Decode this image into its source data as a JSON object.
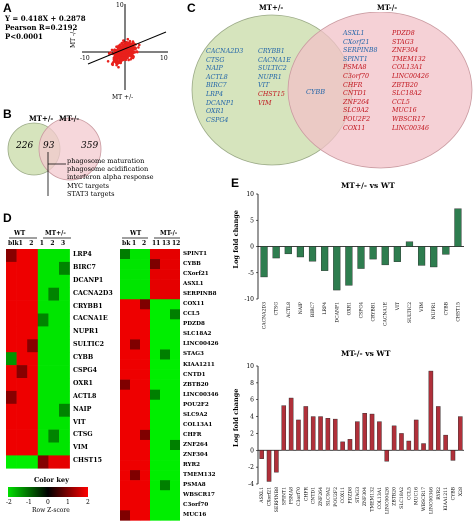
{
  "panels": {
    "A": {
      "letter": "A",
      "equation": "Y = 0.418X + 0.2878",
      "pearson": "Pearson R=0.2192",
      "pvalue": "P<0.0001",
      "y_axis_label": "MT -/-",
      "x_axis_label": "MT +/-",
      "tick_neg": "-10",
      "tick_pos": "10",
      "tick_y_pos": "10"
    },
    "B": {
      "letter": "B",
      "group1": "MT+/-",
      "group2": "MT-/-",
      "only1": "226",
      "both": "93",
      "only2": "359",
      "terms": [
        "phagosome maturation",
        "phagosome acidification",
        "interferon alpha response",
        "MYC targets",
        "STAT3 targets"
      ]
    },
    "C": {
      "letter": "C",
      "group1": "MT+/-",
      "group2": "MT-/-",
      "left_col1": [
        "CACNA2D3",
        "CTSG",
        "NAIP",
        "ACTL8",
        "BIRC7",
        "LRP4",
        "DCANP1",
        "OXR1",
        "CSPG4"
      ],
      "left_col2": [
        "CRYBB1",
        "CACNA1E",
        "SULTIC2",
        "NUPR1",
        "VIT",
        "CHST15",
        "VIM"
      ],
      "left_col2_colors": [
        "blue",
        "blue",
        "blue",
        "blue",
        "blue",
        "red",
        "red"
      ],
      "overlap": "CYBB",
      "right_col1": [
        "ASXL1",
        "CXorf21",
        "SERPINB8",
        "SPINT1",
        "PSMA8",
        "C3orf70",
        "CHFR",
        "CNTD1",
        "ZNF264",
        "SLC9A2",
        "POU2F2",
        "COX11"
      ],
      "right_col1_colors": [
        "blue",
        "blue",
        "blue",
        "blue",
        "red",
        "red",
        "red",
        "red",
        "red",
        "red",
        "red",
        "red"
      ],
      "right_col2": [
        "PDZD8",
        "STAG3",
        "ZNF304",
        "TMEM132",
        "COL13A1",
        "LINC00426",
        "ZBTB20",
        "SLC18A2",
        "CCL5",
        "MUC16",
        "WBSCR17",
        "LINC00346"
      ]
    },
    "D": {
      "letter": "D",
      "left_header_wt": "WT",
      "left_header_mt": "MT+/-",
      "left_cols": [
        "blk",
        "1",
        "2",
        "1",
        "2",
        "3"
      ],
      "left_genes": [
        "LRP4",
        "BIRC7",
        "DCANP1",
        "CACNA2D3",
        "CRYBB1",
        "CACNA1E",
        "NUPR1",
        "SULTIC2",
        "CYBB",
        "CSPG4",
        "OXR1",
        "ACTL8",
        "NAIP",
        "VIT",
        "CTSG",
        "VIM",
        "CHST15"
      ],
      "right_header_wt": "WT",
      "right_header_mt": "MT-/-",
      "right_cols": [
        "bk",
        "1",
        "2",
        "11",
        "13",
        "12"
      ],
      "right_genes": [
        "SPINT1",
        "CYBB",
        "CXorf21",
        "ASXL1",
        "SERPINB8",
        "COX11",
        "CCL5",
        "PDZD8",
        "SLC18A2",
        "LINC00426",
        "STAG3",
        "KIAA1211",
        "CNTD1",
        "ZBTB20",
        "LINC00346",
        "POU2F2",
        "SLC9A2",
        "COL13A1",
        "CHFR",
        "ZNF264",
        "ZNF304",
        "RYR2",
        "TMEM132",
        "PSMA8",
        "WBSCR17",
        "C3orf70",
        "MUC16"
      ],
      "color_key_title": "Color key",
      "color_key_ticks": [
        "-2",
        "-1",
        "0",
        "1",
        "2"
      ],
      "color_key_label": "Row Z-score"
    },
    "E": {
      "letter": "E"
    }
  },
  "chart_data": [
    {
      "type": "bar",
      "title": "MT+/- vs WT",
      "ylabel": "Log fold change",
      "ylim": [
        -10,
        10
      ],
      "yticks": [
        -10,
        -5,
        0,
        5,
        10
      ],
      "color": "#2e7d4f",
      "categories": [
        "CACNA2D3",
        "CTSG",
        "ACTL8",
        "NAIP",
        "BIRC7",
        "LRP4",
        "DCANP1",
        "OXR1",
        "CSPG4",
        "CRYBB1",
        "CACNA1E",
        "VIT",
        "SULTIC2",
        "VIM",
        "NUPR1",
        "CYBB",
        "CHST15"
      ],
      "values": [
        -5.8,
        -2.2,
        -1.4,
        -2.0,
        -2.8,
        -4.6,
        -8.3,
        -7.4,
        -4.2,
        -2.4,
        -3.5,
        -2.9,
        0.9,
        -3.6,
        -3.9,
        -1.5,
        7.2
      ]
    },
    {
      "type": "bar",
      "title": "MT-/- vs WT",
      "ylabel": "Log fold change",
      "ylim": [
        -4,
        10
      ],
      "yticks": [
        -4,
        -2,
        0,
        2,
        4,
        6,
        8,
        10
      ],
      "color": "#b0303a",
      "categories": [
        "ASXL1",
        "CXorf21",
        "SERPINB8",
        "SPINT1",
        "PSMA8",
        "C3orf70",
        "CHFR",
        "CNTD1",
        "ZNF264",
        "SLC9A2",
        "POU2F2",
        "COX11",
        "PDZD8",
        "STAG3",
        "ZNF304",
        "TMEM132",
        "COL13A1",
        "LINC00426",
        "ZBTB20",
        "SLC18A2",
        "CCL5",
        "MUC16",
        "WBSCR17",
        "LINC00346",
        "RYR2",
        "KIAA1211",
        "CYBB",
        "X28"
      ],
      "values": [
        -1.0,
        -3.7,
        -2.6,
        5.3,
        6.2,
        3.6,
        5.2,
        4.0,
        4.0,
        3.8,
        3.7,
        1.0,
        1.3,
        3.4,
        4.4,
        4.3,
        3.4,
        -1.3,
        2.9,
        2.0,
        1.1,
        3.6,
        0.8,
        9.4,
        5.2,
        1.8,
        -1.2,
        4.0
      ]
    }
  ]
}
